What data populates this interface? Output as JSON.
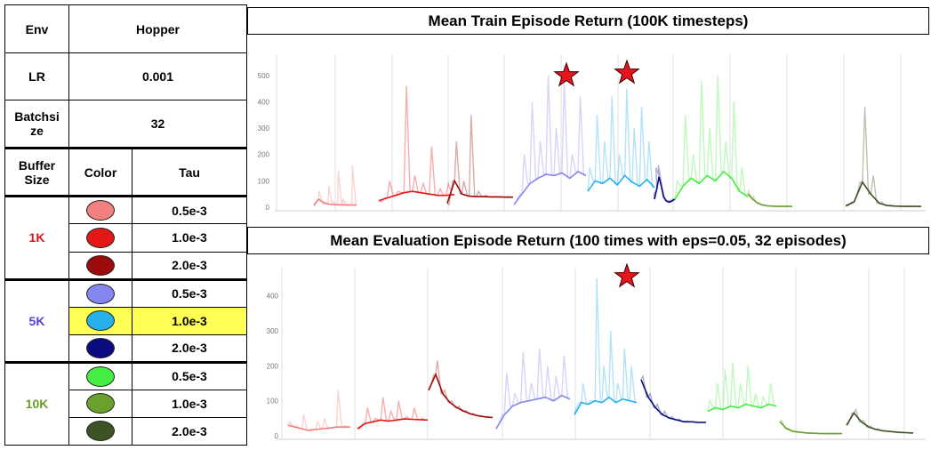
{
  "table": {
    "env_label": "Env",
    "env_value": "Hopper",
    "lr_label": "LR",
    "lr_value": "0.001",
    "batch_label": "Batchsi\nze",
    "batch_value": "32",
    "col_buffer": "Buffer\nSize",
    "col_color": "Color",
    "col_tau": "Tau",
    "highlight_color": "#ffff55",
    "groups": [
      {
        "label": "1K",
        "label_color": "#e0101a",
        "rows": [
          {
            "tau": "0.5e-3",
            "color": "#f28080"
          },
          {
            "tau": "1.0e-3",
            "color": "#e41717"
          },
          {
            "tau": "2.0e-3",
            "color": "#9c0b0b"
          }
        ]
      },
      {
        "label": "5K",
        "label_color": "#5a3fd6",
        "rows": [
          {
            "tau": "0.5e-3",
            "color": "#8686f0"
          },
          {
            "tau": "1.0e-3",
            "color": "#27b0ec",
            "highlight": true
          },
          {
            "tau": "2.0e-3",
            "color": "#0b0b80"
          }
        ]
      },
      {
        "label": "10K",
        "label_color": "#6a9e2a",
        "rows": [
          {
            "tau": "0.5e-3",
            "color": "#44ee44"
          },
          {
            "tau": "1.0e-3",
            "color": "#6aa02c"
          },
          {
            "tau": "2.0e-3",
            "color": "#3d5225"
          }
        ]
      }
    ]
  },
  "chart_data": [
    {
      "type": "line",
      "title": "Mean Train Episode Return (100K timesteps)",
      "ylim": [
        0,
        550
      ],
      "yticks": [
        "0",
        "100",
        "200",
        "300",
        "400",
        "500"
      ],
      "grid": true,
      "best_markers": [
        "5K / 0.5e-3",
        "5K / 1.0e-3"
      ],
      "series": [
        {
          "group": "1K",
          "tau": "0.5e-3",
          "color": "#f28080",
          "smooth": [
            8,
            30,
            18,
            12,
            10,
            9,
            9,
            8,
            8,
            8
          ],
          "raw": [
            5,
            60,
            12,
            80,
            20,
            140,
            30,
            10,
            160,
            15
          ]
        },
        {
          "group": "1K",
          "tau": "1.0e-3",
          "color": "#e41717",
          "smooth": [
            25,
            35,
            45,
            55,
            60,
            55,
            50,
            45,
            45,
            48
          ],
          "raw": [
            20,
            100,
            60,
            460,
            120,
            90,
            230,
            70,
            90,
            60
          ]
        },
        {
          "group": "1K",
          "tau": "2.0e-3",
          "color": "#9c0b0b",
          "smooth": [
            15,
            100,
            50,
            42,
            40,
            40,
            39,
            39,
            38,
            38
          ],
          "raw": [
            10,
            250,
            100,
            350,
            60,
            45,
            40,
            40,
            40,
            40
          ]
        },
        {
          "group": "5K",
          "tau": "0.5e-3",
          "color": "#8686f0",
          "smooth": [
            10,
            50,
            90,
            110,
            125,
            120,
            130,
            110,
            135,
            120
          ],
          "raw": [
            20,
            200,
            400,
            250,
            500,
            300,
            480,
            200,
            420,
            150
          ]
        },
        {
          "group": "5K",
          "tau": "1.0e-3",
          "color": "#27b0ec",
          "smooth": [
            60,
            100,
            90,
            110,
            85,
            120,
            95,
            80,
            105,
            75
          ],
          "raw": [
            150,
            350,
            250,
            420,
            200,
            450,
            300,
            380,
            250,
            200
          ]
        },
        {
          "group": "5K",
          "tau": "2.0e-3",
          "color": "#0b0b80",
          "smooth": [
            30,
            70,
            115,
            80,
            40,
            25,
            20,
            20,
            25,
            30
          ],
          "raw": [
            50,
            150,
            160,
            100,
            50,
            30,
            25,
            25,
            30,
            35
          ]
        },
        {
          "group": "10K",
          "tau": "0.5e-3",
          "color": "#44ee44",
          "smooth": [
            30,
            80,
            110,
            90,
            120,
            100,
            135,
            110,
            60,
            40
          ],
          "raw": [
            100,
            350,
            200,
            480,
            300,
            500,
            250,
            400,
            150,
            80
          ]
        },
        {
          "group": "10K",
          "tau": "1.0e-3",
          "color": "#6aa02c",
          "smooth": [
            50,
            30,
            15,
            8,
            5,
            4,
            3,
            3,
            3,
            3
          ],
          "raw": [
            60,
            40,
            20,
            10,
            6,
            5,
            4,
            3,
            3,
            3
          ]
        },
        {
          "group": "10K",
          "tau": "2.0e-3",
          "color": "#3d5225",
          "smooth": [
            5,
            20,
            95,
            50,
            15,
            6,
            4,
            3,
            3,
            3
          ],
          "raw": [
            5,
            40,
            380,
            120,
            20,
            8,
            5,
            4,
            3,
            3
          ]
        }
      ]
    },
    {
      "type": "line",
      "title": "Mean Evaluation Episode Return (100 times with eps=0.05, 32 episodes)",
      "ylim": [
        0,
        460
      ],
      "yticks": [
        "0",
        "100",
        "200",
        "300",
        "400"
      ],
      "grid": true,
      "best_markers": [
        "5K / 1.0e-3"
      ],
      "series": [
        {
          "group": "1K",
          "tau": "0.5e-3",
          "color": "#f28080",
          "smooth": [
            30,
            25,
            20,
            15,
            18,
            20,
            22,
            25,
            25,
            25
          ],
          "raw": [
            40,
            30,
            60,
            20,
            40,
            50,
            20,
            130,
            30,
            30
          ]
        },
        {
          "group": "1K",
          "tau": "1.0e-3",
          "color": "#e41717",
          "smooth": [
            20,
            35,
            40,
            45,
            42,
            45,
            48,
            47,
            46,
            45
          ],
          "raw": [
            20,
            80,
            50,
            110,
            70,
            100,
            55,
            80,
            50,
            45
          ]
        },
        {
          "group": "1K",
          "tau": "2.0e-3",
          "color": "#9c0b0b",
          "smooth": [
            130,
            175,
            120,
            95,
            80,
            70,
            62,
            57,
            54,
            52
          ],
          "raw": [
            140,
            215,
            130,
            100,
            85,
            72,
            64,
            58,
            55,
            52
          ]
        },
        {
          "group": "5K",
          "tau": "0.5e-3",
          "color": "#8686f0",
          "smooth": [
            20,
            60,
            85,
            95,
            100,
            105,
            110,
            100,
            115,
            105
          ],
          "raw": [
            30,
            180,
            120,
            240,
            150,
            250,
            200,
            170,
            230,
            150
          ]
        },
        {
          "group": "5K",
          "tau": "1.0e-3",
          "color": "#27b0ec",
          "smooth": [
            60,
            95,
            90,
            100,
            95,
            110,
            95,
            105,
            100,
            95
          ],
          "raw": [
            80,
            150,
            100,
            450,
            200,
            300,
            150,
            250,
            200,
            150
          ]
        },
        {
          "group": "5K",
          "tau": "2.0e-3",
          "color": "#0b0b80",
          "smooth": [
            160,
            110,
            80,
            60,
            50,
            45,
            40,
            40,
            38,
            38
          ],
          "raw": [
            170,
            120,
            90,
            70,
            55,
            48,
            42,
            40,
            38,
            38
          ]
        },
        {
          "group": "10K",
          "tau": "0.5e-3",
          "color": "#44ee44",
          "smooth": [
            70,
            80,
            75,
            85,
            80,
            90,
            85,
            80,
            90,
            85
          ],
          "raw": [
            100,
            150,
            190,
            210,
            150,
            200,
            120,
            110,
            150,
            120
          ]
        },
        {
          "group": "10K",
          "tau": "1.0e-3",
          "color": "#6aa02c",
          "smooth": [
            40,
            20,
            12,
            10,
            8,
            7,
            6,
            6,
            6,
            6
          ],
          "raw": [
            45,
            22,
            14,
            10,
            9,
            8,
            7,
            6,
            6,
            6
          ]
        },
        {
          "group": "10K",
          "tau": "2.0e-3",
          "color": "#3d5225",
          "smooth": [
            30,
            65,
            40,
            25,
            18,
            14,
            12,
            10,
            9,
            8
          ],
          "raw": [
            35,
            75,
            45,
            28,
            20,
            15,
            12,
            10,
            9,
            8
          ]
        }
      ]
    }
  ]
}
